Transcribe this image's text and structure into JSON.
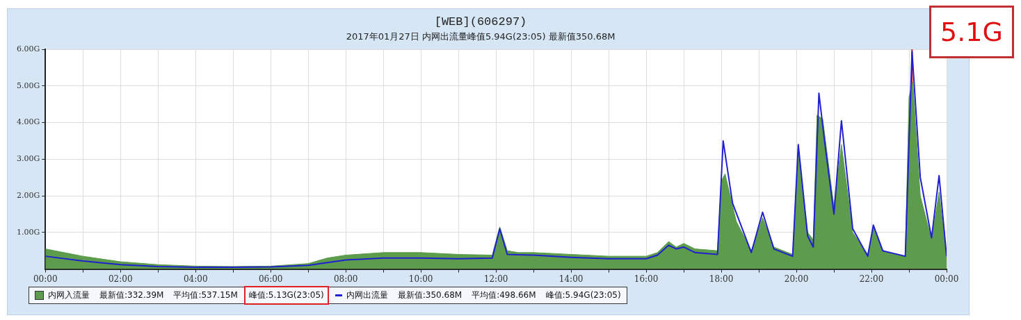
{
  "chart_data": {
    "type": "line",
    "title": "[WEB](606297)",
    "subtitle": "2017年01月27日 内网出流量峰值5.94G(23:05) 最新值350.68M",
    "xlim": [
      0,
      24
    ],
    "xticks": [
      {
        "value": 0,
        "label": "00:00"
      },
      {
        "value": 1,
        "label": null
      },
      {
        "value": 2,
        "label": "02:00"
      },
      {
        "value": 3,
        "label": null
      },
      {
        "value": 4,
        "label": "04:00"
      },
      {
        "value": 5,
        "label": null
      },
      {
        "value": 6,
        "label": "06:00"
      },
      {
        "value": 7,
        "label": null
      },
      {
        "value": 8,
        "label": "08:00"
      },
      {
        "value": 9,
        "label": null
      },
      {
        "value": 10,
        "label": "10:00"
      },
      {
        "value": 11,
        "label": null
      },
      {
        "value": 12,
        "label": "12:00"
      },
      {
        "value": 13,
        "label": null
      },
      {
        "value": 14,
        "label": "14:00"
      },
      {
        "value": 15,
        "label": null
      },
      {
        "value": 16,
        "label": "16:00"
      },
      {
        "value": 17,
        "label": null
      },
      {
        "value": 18,
        "label": "18:00"
      },
      {
        "value": 19,
        "label": null
      },
      {
        "value": 20,
        "label": "20:00"
      },
      {
        "value": 21,
        "label": null
      },
      {
        "value": 22,
        "label": "22:00"
      },
      {
        "value": 23,
        "label": null
      },
      {
        "value": 24,
        "label": "00:00"
      }
    ],
    "ylim": [
      0,
      6
    ],
    "yticks": [
      {
        "value": 1,
        "label": "1.00G"
      },
      {
        "value": 2,
        "label": "2.00G"
      },
      {
        "value": 3,
        "label": "3.00G"
      },
      {
        "value": 4,
        "label": "4.00G"
      },
      {
        "value": 5,
        "label": "5.00G"
      },
      {
        "value": 6,
        "label": "6.00G"
      }
    ],
    "grid": true,
    "legend": "bottom",
    "series": [
      {
        "name": "内网入流量",
        "type": "area",
        "color": "#5c9c4c",
        "x": [
          0,
          0.5,
          1,
          2,
          3,
          4,
          5,
          6,
          7,
          7.5,
          8,
          9,
          10,
          11,
          11.9,
          12.1,
          12.3,
          12.6,
          13,
          14,
          15,
          16,
          16.3,
          16.6,
          16.8,
          17,
          17.3,
          17.9,
          18,
          18.1,
          18.4,
          18.8,
          19.1,
          19.4,
          19.9,
          20.05,
          20.3,
          20.45,
          20.55,
          20.7,
          21,
          21.2,
          21.5,
          21.9,
          22.05,
          22.3,
          22.9,
          23,
          23.1,
          23.3,
          23.6,
          23.8,
          24
        ],
        "values": [
          0.55,
          0.45,
          0.35,
          0.2,
          0.12,
          0.08,
          0.07,
          0.08,
          0.15,
          0.3,
          0.38,
          0.45,
          0.45,
          0.4,
          0.38,
          1.15,
          0.5,
          0.45,
          0.45,
          0.4,
          0.35,
          0.35,
          0.45,
          0.75,
          0.6,
          0.7,
          0.55,
          0.5,
          2.4,
          2.6,
          1.3,
          0.5,
          1.4,
          0.6,
          0.4,
          3.2,
          1,
          0.8,
          4.2,
          4.1,
          1.7,
          3.4,
          1,
          0.4,
          1.15,
          0.5,
          0.35,
          4.7,
          5.1,
          2,
          0.8,
          2.1,
          0.33
        ]
      },
      {
        "name": "内网出流量",
        "type": "line",
        "color": "#2020d0",
        "x": [
          0,
          1,
          2,
          3,
          4,
          5,
          6,
          7,
          8,
          9,
          10,
          11,
          11.9,
          12.1,
          12.3,
          13,
          14,
          15,
          16,
          16.3,
          16.6,
          16.8,
          17,
          17.3,
          17.9,
          18.05,
          18.3,
          18.8,
          19.1,
          19.4,
          19.9,
          20.05,
          20.3,
          20.45,
          20.6,
          20.75,
          21,
          21.2,
          21.5,
          21.9,
          22.05,
          22.3,
          22.9,
          23.08,
          23.3,
          23.6,
          23.8,
          24
        ],
        "values": [
          0.35,
          0.22,
          0.12,
          0.07,
          0.05,
          0.05,
          0.06,
          0.1,
          0.25,
          0.3,
          0.3,
          0.28,
          0.3,
          1.1,
          0.4,
          0.38,
          0.32,
          0.28,
          0.28,
          0.38,
          0.65,
          0.55,
          0.6,
          0.45,
          0.4,
          3.5,
          1.8,
          0.45,
          1.55,
          0.55,
          0.35,
          3.4,
          0.9,
          0.6,
          4.8,
          3.5,
          1.5,
          4.05,
          1.1,
          0.35,
          1.2,
          0.5,
          0.35,
          5.94,
          2.5,
          0.85,
          2.55,
          0.35
        ]
      }
    ],
    "ref_lines": [
      {
        "axis": "x",
        "value": 23.08,
        "color": "#cc2020"
      }
    ],
    "annotations": [
      "最新值:332.39M",
      "平均值:537.15M",
      "峰值:5.13G(23:05)",
      "最新值:350.68M",
      "平均值:498.66M",
      "峰值:5.94G(23:05)",
      "5.1G"
    ]
  }
}
